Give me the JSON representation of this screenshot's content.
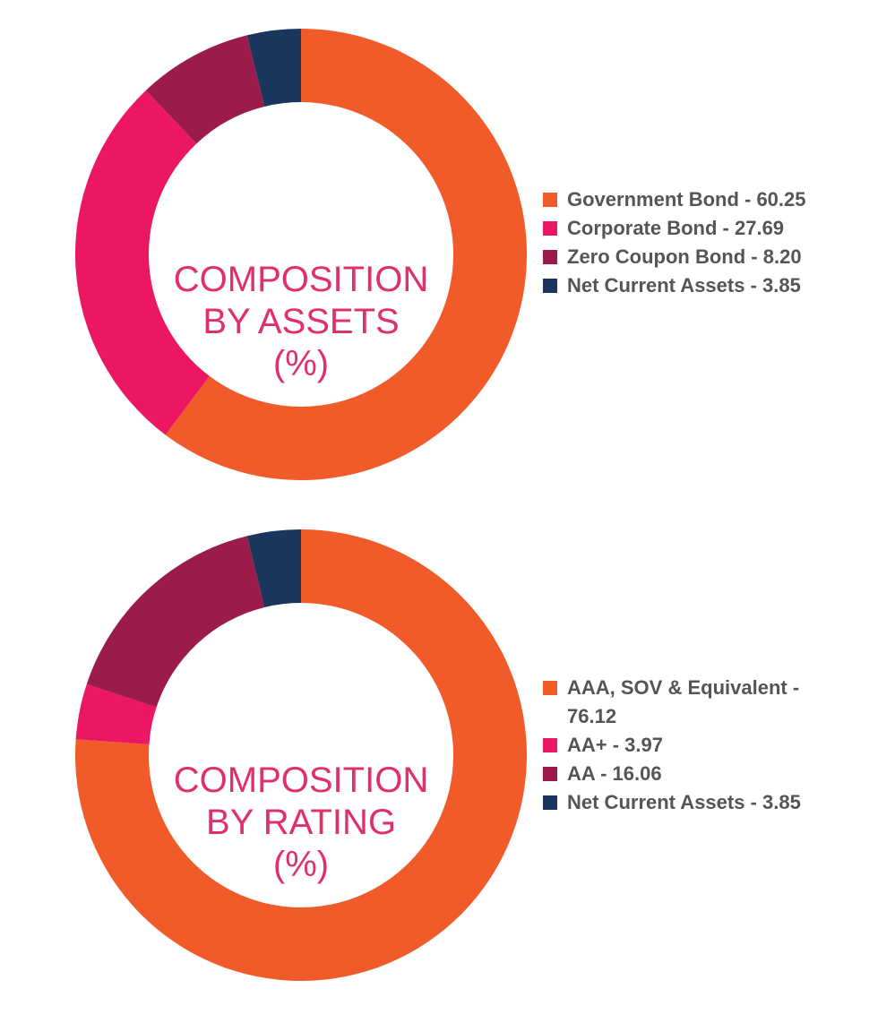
{
  "chart_data": [
    {
      "type": "pie",
      "variant": "donut",
      "title_lines": [
        "COMPOSITION",
        "BY ASSETS",
        "(%)"
      ],
      "legend_placement": "right",
      "slices": [
        {
          "label": "Government Bond - 60.25",
          "name": "Government Bond",
          "value": 60.25,
          "color": "#F15A29"
        },
        {
          "label": "Corporate Bond - 27.69",
          "name": "Corporate Bond",
          "value": 27.69,
          "color": "#EC1763"
        },
        {
          "label": "Zero Coupon Bond - 8.20",
          "name": "Zero Coupon Bond",
          "value": 8.2,
          "color": "#9B1B4B"
        },
        {
          "label": "Net Current Assets - 3.85",
          "name": "Net Current Assets",
          "value": 3.85,
          "color": "#1B365D"
        }
      ]
    },
    {
      "type": "pie",
      "variant": "donut",
      "title_lines": [
        "COMPOSITION",
        "BY RATING",
        "(%)"
      ],
      "legend_placement": "right",
      "slices": [
        {
          "label": "AAA, SOV & Equivalent - 76.12",
          "name": "AAA, SOV & Equivalent",
          "value": 76.12,
          "color": "#F15A29"
        },
        {
          "label": "AA+ - 3.97",
          "name": "AA+",
          "value": 3.97,
          "color": "#EC1763"
        },
        {
          "label": "AA - 16.06",
          "name": "AA",
          "value": 16.06,
          "color": "#9B1B4B"
        },
        {
          "label": "Net Current Assets - 3.85",
          "name": "Net Current Assets",
          "value": 3.85,
          "color": "#1B365D"
        }
      ]
    }
  ]
}
